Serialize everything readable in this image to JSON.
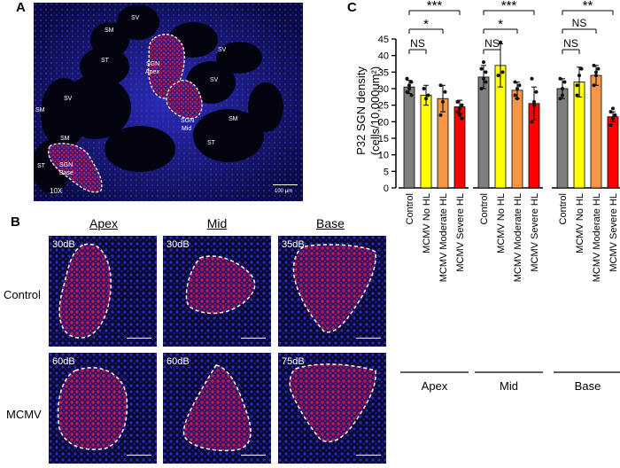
{
  "panel_a": {
    "letter": "A",
    "magnification": "10X",
    "scale": "100 μm",
    "labels": [
      "SV",
      "SM",
      "ST",
      "SGN",
      "Apex",
      "SV",
      "SV",
      "SM",
      "SV",
      "SGN",
      "Mid",
      "SM",
      "ST",
      "SM",
      "ST",
      "SGN",
      "Base"
    ]
  },
  "panel_b": {
    "letter": "B",
    "columns": [
      "Apex",
      "Mid",
      "Base"
    ],
    "rows": [
      "Control",
      "MCMV"
    ],
    "db_values": [
      [
        "30dB",
        "30dB",
        "35dB"
      ],
      [
        "60dB",
        "60dB",
        "75dB"
      ]
    ],
    "scale": "100 μm"
  },
  "panel_c": {
    "letter": "C"
  },
  "chart_data": {
    "type": "bar",
    "ylabel": "P32 SGN density\n(cells/10,000um²)",
    "ylabel_line1": "P32 SGN density",
    "ylabel_line2": "(cells/10,000um²)",
    "ylim": [
      0,
      45
    ],
    "yticks": [
      "0",
      "5",
      "10",
      "15",
      "20",
      "25",
      "30",
      "35",
      "40",
      "45"
    ],
    "groups": [
      "Apex",
      "Mid",
      "Base"
    ],
    "categories": [
      "Control",
      "MCMV No HL",
      "MCMV Moderate HL",
      "MCMV Severe HL"
    ],
    "colors": [
      "#7f7f7f",
      "#ffff00",
      "#f79646",
      "#ff0000"
    ],
    "values": [
      [
        30.5,
        28,
        27,
        24.5
      ],
      [
        33.5,
        37,
        29.5,
        25.5
      ],
      [
        30,
        32,
        34,
        21.5
      ]
    ],
    "errors": [
      [
        2,
        3,
        4,
        2
      ],
      [
        3.5,
        6.5,
        2.5,
        5
      ],
      [
        3,
        4.5,
        3,
        1.5
      ]
    ],
    "points": [
      [
        [
          29,
          31,
          32,
          33,
          30,
          28
        ],
        [
          30,
          27,
          28
        ],
        [
          22,
          26,
          29,
          31
        ],
        [
          23,
          24,
          25,
          26,
          22,
          21
        ]
      ],
      [
        [
          30,
          33,
          35,
          36,
          38,
          32
        ],
        [
          34,
          44,
          35
        ],
        [
          28,
          30,
          31,
          32,
          27
        ],
        [
          20,
          25,
          29,
          33,
          26
        ]
      ],
      [
        [
          27,
          30,
          32,
          33,
          28
        ],
        [
          28,
          34,
          36,
          31
        ],
        [
          31,
          34,
          36,
          37,
          35
        ],
        [
          19,
          21,
          22,
          23,
          24
        ]
      ]
    ],
    "significance": [
      [
        {
          "from": 0,
          "to": 1,
          "label": "NS"
        },
        {
          "from": 0,
          "to": 2,
          "label": "*"
        },
        {
          "from": 0,
          "to": 3,
          "label": "***"
        }
      ],
      [
        {
          "from": 0,
          "to": 1,
          "label": "NS"
        },
        {
          "from": 0,
          "to": 2,
          "label": "*"
        },
        {
          "from": 0,
          "to": 3,
          "label": "***"
        }
      ],
      [
        {
          "from": 0,
          "to": 1,
          "label": "NS"
        },
        {
          "from": 0,
          "to": 2,
          "label": "NS"
        },
        {
          "from": 0,
          "to": 3,
          "label": "**"
        }
      ]
    ]
  }
}
